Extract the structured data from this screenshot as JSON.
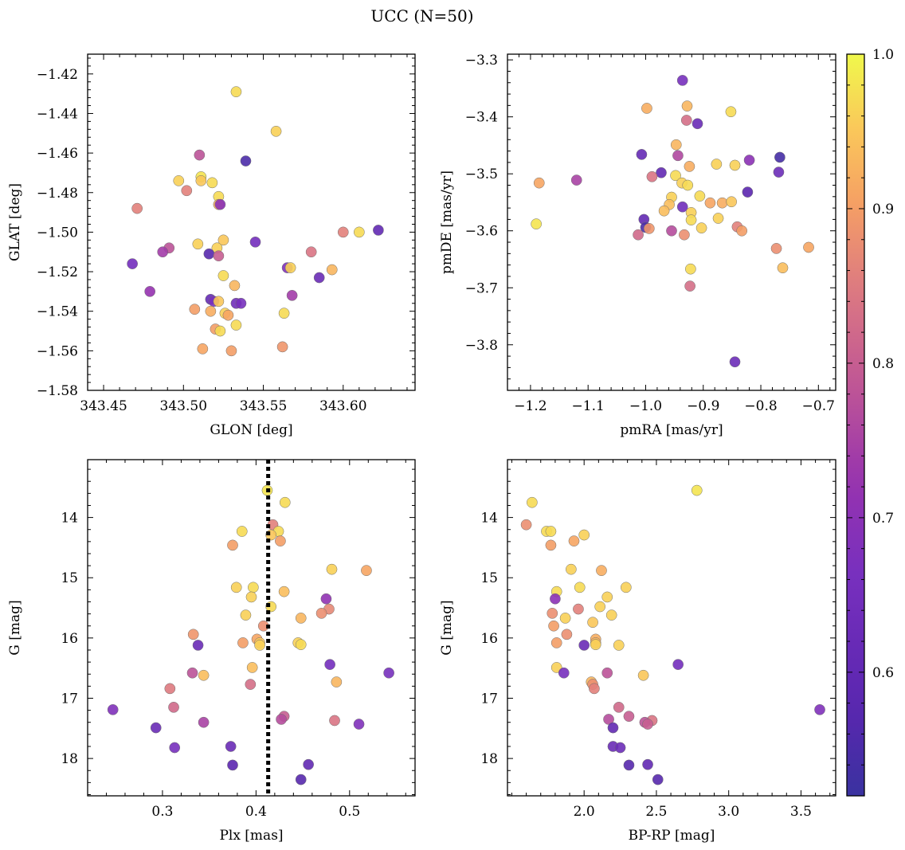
{
  "chart_data": {
    "title": "UCC (N=50)",
    "colorbar": {
      "colormap": "plasma",
      "range": [
        0.52,
        1.0
      ],
      "ticks": [
        0.6,
        0.7,
        0.8,
        0.9,
        1.0
      ],
      "tick_labels": [
        "0.6",
        "0.7",
        "0.8",
        "0.9",
        "1.0"
      ]
    },
    "panels": [
      {
        "id": "glon-glat",
        "type": "scatter",
        "xlabel": "GLON [deg]",
        "ylabel": "GLAT [deg]",
        "xlim": [
          343.44,
          343.645
        ],
        "ylim": [
          -1.58,
          -1.41
        ],
        "y_inverted": false,
        "xticks": [
          343.45,
          343.5,
          343.55,
          343.6
        ],
        "xtick_labels": [
          "343.45",
          "343.50",
          "343.55",
          "343.60"
        ],
        "yticks": [
          -1.58,
          -1.56,
          -1.54,
          -1.52,
          -1.5,
          -1.48,
          -1.46,
          -1.44,
          -1.42
        ],
        "ytick_labels": [
          "−1.58",
          "−1.56",
          "−1.54",
          "−1.52",
          "−1.50",
          "−1.48",
          "−1.46",
          "−1.44",
          "−1.42"
        ],
        "vline": null,
        "points": [
          [
            343.533,
            -1.429,
            0.97
          ],
          [
            343.558,
            -1.449,
            0.96
          ],
          [
            343.539,
            -1.464,
            0.55
          ],
          [
            343.51,
            -1.461,
            0.78
          ],
          [
            343.497,
            -1.474,
            0.96
          ],
          [
            343.511,
            -1.472,
            0.98
          ],
          [
            343.511,
            -1.474,
            0.95
          ],
          [
            343.518,
            -1.475,
            0.97
          ],
          [
            343.502,
            -1.479,
            0.86
          ],
          [
            343.522,
            -1.482,
            0.97
          ],
          [
            343.522,
            -1.486,
            0.92
          ],
          [
            343.523,
            -1.486,
            0.7
          ],
          [
            343.471,
            -1.488,
            0.86
          ],
          [
            343.6,
            -1.5,
            0.86
          ],
          [
            343.61,
            -1.5,
            0.97
          ],
          [
            343.622,
            -1.499,
            0.6
          ],
          [
            343.525,
            -1.504,
            0.95
          ],
          [
            343.509,
            -1.506,
            0.96
          ],
          [
            343.545,
            -1.505,
            0.65
          ],
          [
            343.521,
            -1.508,
            0.96
          ],
          [
            343.516,
            -1.511,
            0.57
          ],
          [
            343.522,
            -1.512,
            0.8
          ],
          [
            343.491,
            -1.508,
            0.78
          ],
          [
            343.487,
            -1.51,
            0.74
          ],
          [
            343.58,
            -1.51,
            0.84
          ],
          [
            343.468,
            -1.516,
            0.65
          ],
          [
            343.565,
            -1.518,
            0.68
          ],
          [
            343.567,
            -1.518,
            0.96
          ],
          [
            343.593,
            -1.519,
            0.93
          ],
          [
            343.585,
            -1.523,
            0.62
          ],
          [
            343.525,
            -1.522,
            0.97
          ],
          [
            343.532,
            -1.527,
            0.93
          ],
          [
            343.479,
            -1.53,
            0.72
          ],
          [
            343.568,
            -1.532,
            0.74
          ],
          [
            343.517,
            -1.534,
            0.61
          ],
          [
            343.519,
            -1.535,
            0.67
          ],
          [
            343.522,
            -1.535,
            0.95
          ],
          [
            343.533,
            -1.536,
            0.64
          ],
          [
            343.507,
            -1.539,
            0.9
          ],
          [
            343.517,
            -1.54,
            0.92
          ],
          [
            343.563,
            -1.541,
            0.97
          ],
          [
            343.526,
            -1.541,
            0.96
          ],
          [
            343.528,
            -1.542,
            0.91
          ],
          [
            343.533,
            -1.547,
            0.97
          ],
          [
            343.52,
            -1.549,
            0.9
          ],
          [
            343.523,
            -1.55,
            0.97
          ],
          [
            343.512,
            -1.559,
            0.91
          ],
          [
            343.53,
            -1.56,
            0.9
          ],
          [
            343.562,
            -1.558,
            0.89
          ],
          [
            343.536,
            -1.536,
            0.66
          ]
        ]
      },
      {
        "id": "pmra-pmde",
        "type": "scatter",
        "xlabel": "pmRA [mas/yr]",
        "ylabel": "pmDE [mas/yr]",
        "xlim": [
          -1.24,
          -0.67
        ],
        "ylim": [
          -3.88,
          -3.29
        ],
        "y_inverted": false,
        "xticks": [
          -1.2,
          -1.1,
          -1.0,
          -0.9,
          -0.8,
          -0.7
        ],
        "xtick_labels": [
          "−1.2",
          "−1.1",
          "−1.0",
          "−0.9",
          "−0.8",
          "−0.7"
        ],
        "yticks": [
          -3.8,
          -3.7,
          -3.6,
          -3.5,
          -3.4,
          -3.3
        ],
        "ytick_labels": [
          "−3.8",
          "−3.7",
          "−3.6",
          "−3.5",
          "−3.4",
          "−3.3"
        ],
        "vline": null,
        "points": [
          [
            -0.936,
            -3.336,
            0.66
          ],
          [
            -0.998,
            -3.385,
            0.92
          ],
          [
            -0.928,
            -3.381,
            0.93
          ],
          [
            -0.929,
            -3.406,
            0.83
          ],
          [
            -0.91,
            -3.412,
            0.62
          ],
          [
            -0.852,
            -3.391,
            0.97
          ],
          [
            -0.947,
            -3.449,
            0.93
          ],
          [
            -1.007,
            -3.466,
            0.61
          ],
          [
            -0.944,
            -3.468,
            0.76
          ],
          [
            -0.767,
            -3.471,
            0.54
          ],
          [
            -0.82,
            -3.476,
            0.7
          ],
          [
            -0.877,
            -3.483,
            0.96
          ],
          [
            -0.845,
            -3.485,
            0.96
          ],
          [
            -0.924,
            -3.487,
            0.92
          ],
          [
            -0.769,
            -3.497,
            0.63
          ],
          [
            -0.973,
            -3.498,
            0.6
          ],
          [
            -0.948,
            -3.503,
            0.97
          ],
          [
            -0.989,
            -3.505,
            0.84
          ],
          [
            -1.185,
            -3.516,
            0.91
          ],
          [
            -1.12,
            -3.511,
            0.75
          ],
          [
            -0.937,
            -3.516,
            0.96
          ],
          [
            -0.927,
            -3.52,
            0.97
          ],
          [
            -0.823,
            -3.532,
            0.58
          ],
          [
            -0.906,
            -3.539,
            0.97
          ],
          [
            -0.955,
            -3.541,
            0.96
          ],
          [
            -0.959,
            -3.554,
            0.94
          ],
          [
            -0.888,
            -3.551,
            0.91
          ],
          [
            -0.867,
            -3.551,
            0.92
          ],
          [
            -0.851,
            -3.549,
            0.95
          ],
          [
            -0.936,
            -3.558,
            0.64
          ],
          [
            -0.968,
            -3.565,
            0.94
          ],
          [
            -0.921,
            -3.568,
            0.96
          ],
          [
            -0.874,
            -3.578,
            0.96
          ],
          [
            -0.921,
            -3.581,
            0.97
          ],
          [
            -1.003,
            -3.58,
            0.6
          ],
          [
            -1.19,
            -3.588,
            0.98
          ],
          [
            -0.903,
            -3.595,
            0.96
          ],
          [
            -0.841,
            -3.593,
            0.86
          ],
          [
            -1.0,
            -3.594,
            0.55
          ],
          [
            -0.994,
            -3.596,
            0.89
          ],
          [
            -0.955,
            -3.6,
            0.77
          ],
          [
            -0.833,
            -3.6,
            0.9
          ],
          [
            -1.013,
            -3.607,
            0.82
          ],
          [
            -0.933,
            -3.607,
            0.88
          ],
          [
            -0.773,
            -3.631,
            0.88
          ],
          [
            -0.717,
            -3.629,
            0.91
          ],
          [
            -0.762,
            -3.665,
            0.94
          ],
          [
            -0.922,
            -3.667,
            0.97
          ],
          [
            -0.923,
            -3.697,
            0.83
          ],
          [
            -0.845,
            -3.83,
            0.63
          ]
        ]
      },
      {
        "id": "plx-g",
        "type": "scatter",
        "xlabel": "Plx [mas]",
        "ylabel": "G [mag]",
        "xlim": [
          0.22,
          0.57
        ],
        "ylim": [
          18.62,
          13.04
        ],
        "y_inverted": true,
        "xticks": [
          0.3,
          0.4,
          0.5
        ],
        "xtick_labels": [
          "0.3",
          "0.4",
          "0.5"
        ],
        "yticks": [
          14,
          15,
          16,
          17,
          18
        ],
        "ytick_labels": [
          "14",
          "15",
          "16",
          "17",
          "18"
        ],
        "vline": 0.413,
        "points": [
          [
            0.412,
            13.55,
            0.98
          ],
          [
            0.431,
            13.75,
            0.97
          ],
          [
            0.418,
            14.12,
            0.86
          ],
          [
            0.385,
            14.23,
            0.97
          ],
          [
            0.424,
            14.23,
            0.97
          ],
          [
            0.416,
            14.29,
            0.95
          ],
          [
            0.426,
            14.39,
            0.9
          ],
          [
            0.375,
            14.46,
            0.9
          ],
          [
            0.481,
            14.86,
            0.96
          ],
          [
            0.518,
            14.88,
            0.91
          ],
          [
            0.379,
            15.16,
            0.96
          ],
          [
            0.397,
            15.16,
            0.97
          ],
          [
            0.43,
            15.23,
            0.94
          ],
          [
            0.395,
            15.32,
            0.96
          ],
          [
            0.475,
            15.35,
            0.71
          ],
          [
            0.416,
            15.48,
            0.97
          ],
          [
            0.478,
            15.52,
            0.87
          ],
          [
            0.47,
            15.59,
            0.88
          ],
          [
            0.389,
            15.62,
            0.96
          ],
          [
            0.448,
            15.67,
            0.93
          ],
          [
            0.408,
            15.8,
            0.88
          ],
          [
            0.333,
            15.94,
            0.89
          ],
          [
            0.401,
            16.02,
            0.91
          ],
          [
            0.404,
            16.08,
            0.95
          ],
          [
            0.386,
            16.08,
            0.9
          ],
          [
            0.445,
            16.08,
            0.96
          ],
          [
            0.448,
            16.11,
            0.97
          ],
          [
            0.404,
            16.12,
            0.96
          ],
          [
            0.338,
            16.12,
            0.62
          ],
          [
            0.479,
            16.44,
            0.65
          ],
          [
            0.396,
            16.49,
            0.94
          ],
          [
            0.542,
            16.58,
            0.66
          ],
          [
            0.332,
            16.58,
            0.78
          ],
          [
            0.344,
            16.62,
            0.94
          ],
          [
            0.486,
            16.73,
            0.93
          ],
          [
            0.394,
            16.77,
            0.83
          ],
          [
            0.308,
            16.84,
            0.85
          ],
          [
            0.312,
            17.15,
            0.82
          ],
          [
            0.247,
            17.19,
            0.68
          ],
          [
            0.43,
            17.3,
            0.8
          ],
          [
            0.427,
            17.35,
            0.77
          ],
          [
            0.484,
            17.37,
            0.84
          ],
          [
            0.344,
            17.4,
            0.75
          ],
          [
            0.51,
            17.43,
            0.68
          ],
          [
            0.293,
            17.49,
            0.62
          ],
          [
            0.313,
            17.82,
            0.66
          ],
          [
            0.373,
            17.8,
            0.62
          ],
          [
            0.375,
            18.11,
            0.58
          ],
          [
            0.456,
            18.1,
            0.6
          ],
          [
            0.448,
            18.35,
            0.57
          ]
        ]
      },
      {
        "id": "bprp-g",
        "type": "scatter",
        "xlabel": "BP-RP [mag]",
        "ylabel": "G [mag]",
        "xlim": [
          1.47,
          3.74
        ],
        "ylim": [
          18.62,
          13.04
        ],
        "y_inverted": true,
        "xticks": [
          2.0,
          2.5,
          3.0,
          3.5
        ],
        "xtick_labels": [
          "2.0",
          "2.5",
          "3.0",
          "3.5"
        ],
        "yticks": [
          14,
          15,
          16,
          17,
          18
        ],
        "ytick_labels": [
          "14",
          "15",
          "16",
          "17",
          "18"
        ],
        "vline": null,
        "points": [
          [
            2.78,
            13.55,
            0.98
          ],
          [
            1.64,
            13.75,
            0.97
          ],
          [
            1.6,
            14.12,
            0.88
          ],
          [
            1.74,
            14.23,
            0.97
          ],
          [
            1.77,
            14.23,
            0.97
          ],
          [
            2.0,
            14.29,
            0.96
          ],
          [
            1.93,
            14.39,
            0.91
          ],
          [
            1.77,
            14.46,
            0.9
          ],
          [
            1.91,
            14.86,
            0.96
          ],
          [
            2.12,
            14.88,
            0.92
          ],
          [
            2.29,
            15.16,
            0.96
          ],
          [
            1.97,
            15.16,
            0.97
          ],
          [
            1.81,
            15.23,
            0.97
          ],
          [
            2.16,
            15.32,
            0.96
          ],
          [
            1.8,
            15.35,
            0.7
          ],
          [
            2.11,
            15.48,
            0.96
          ],
          [
            1.96,
            15.52,
            0.86
          ],
          [
            1.78,
            15.59,
            0.88
          ],
          [
            2.19,
            15.62,
            0.96
          ],
          [
            1.87,
            15.67,
            0.96
          ],
          [
            2.06,
            15.74,
            0.95
          ],
          [
            1.79,
            15.8,
            0.9
          ],
          [
            1.88,
            15.94,
            0.88
          ],
          [
            2.08,
            16.02,
            0.92
          ],
          [
            1.81,
            16.08,
            0.9
          ],
          [
            2.08,
            16.08,
            0.93
          ],
          [
            2.08,
            16.11,
            0.96
          ],
          [
            2.24,
            16.12,
            0.96
          ],
          [
            2.0,
            16.12,
            0.62
          ],
          [
            2.65,
            16.44,
            0.65
          ],
          [
            1.81,
            16.49,
            0.96
          ],
          [
            1.86,
            16.58,
            0.66
          ],
          [
            2.16,
            16.58,
            0.78
          ],
          [
            2.41,
            16.62,
            0.95
          ],
          [
            2.05,
            16.73,
            0.93
          ],
          [
            2.06,
            16.77,
            0.88
          ],
          [
            2.07,
            16.84,
            0.86
          ],
          [
            2.24,
            17.15,
            0.82
          ],
          [
            3.63,
            17.19,
            0.68
          ],
          [
            2.31,
            17.3,
            0.8
          ],
          [
            2.17,
            17.35,
            0.77
          ],
          [
            2.47,
            17.37,
            0.84
          ],
          [
            2.42,
            17.4,
            0.78
          ],
          [
            2.44,
            17.43,
            0.8
          ],
          [
            2.2,
            17.49,
            0.6
          ],
          [
            2.2,
            17.8,
            0.62
          ],
          [
            2.25,
            17.82,
            0.63
          ],
          [
            2.31,
            18.11,
            0.57
          ],
          [
            2.44,
            18.1,
            0.6
          ],
          [
            2.51,
            18.35,
            0.57
          ]
        ]
      }
    ]
  }
}
